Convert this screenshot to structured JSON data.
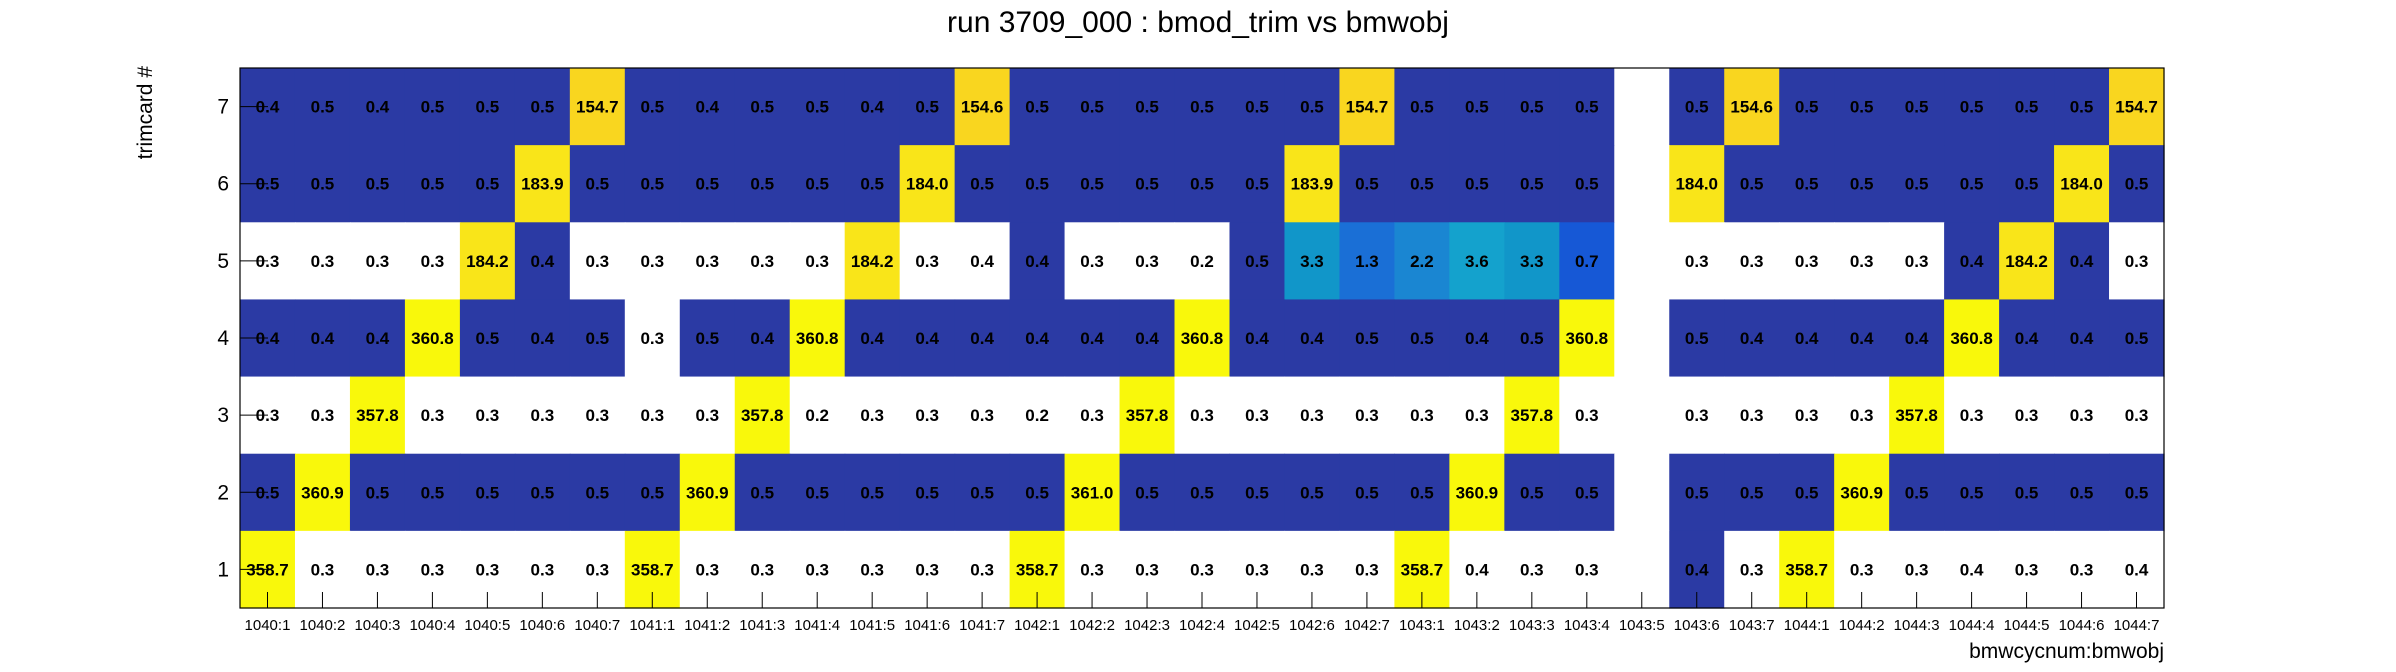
{
  "chart_data": {
    "type": "heatmap",
    "title": "run 3709_000 : bmod_trim vs bmwobj",
    "xlabel": "bmwcycnum:bmwobj",
    "ylabel": "trimcard #",
    "x_categories": [
      "1040:1",
      "1040:2",
      "1040:3",
      "1040:4",
      "1040:5",
      "1040:6",
      "1040:7",
      "1041:1",
      "1041:2",
      "1041:3",
      "1041:4",
      "1041:5",
      "1041:6",
      "1041:7",
      "1042:1",
      "1042:2",
      "1042:3",
      "1042:4",
      "1042:5",
      "1042:6",
      "1042:7",
      "1043:1",
      "1043:2",
      "1043:3",
      "1043:4",
      "1043:5",
      "1043:6",
      "1043:7",
      "1044:1",
      "1044:2",
      "1044:3",
      "1044:4",
      "1044:5",
      "1044:6",
      "1044:7"
    ],
    "y_categories": [
      "1",
      "2",
      "3",
      "4",
      "5",
      "6",
      "7"
    ],
    "rows": [
      {
        "y": "7",
        "values": [
          "0.4",
          "0.5",
          "0.4",
          "0.5",
          "0.5",
          "0.5",
          "154.7",
          "0.5",
          "0.4",
          "0.5",
          "0.5",
          "0.4",
          "0.5",
          "154.6",
          "0.5",
          "0.5",
          "0.5",
          "0.5",
          "0.5",
          "0.5",
          "154.7",
          "0.5",
          "0.5",
          "0.5",
          "0.5",
          "",
          "0.5",
          "154.6",
          "0.5",
          "0.5",
          "0.5",
          "0.5",
          "0.5",
          "0.5",
          "154.7"
        ]
      },
      {
        "y": "6",
        "values": [
          "0.5",
          "0.5",
          "0.5",
          "0.5",
          "0.5",
          "183.9",
          "0.5",
          "0.5",
          "0.5",
          "0.5",
          "0.5",
          "0.5",
          "184.0",
          "0.5",
          "0.5",
          "0.5",
          "0.5",
          "0.5",
          "0.5",
          "183.9",
          "0.5",
          "0.5",
          "0.5",
          "0.5",
          "0.5",
          "",
          "184.0",
          "0.5",
          "0.5",
          "0.5",
          "0.5",
          "0.5",
          "0.5",
          "184.0",
          "0.5"
        ]
      },
      {
        "y": "5",
        "values": [
          "0.3",
          "0.3",
          "0.3",
          "0.3",
          "184.2",
          "0.4",
          "0.3",
          "0.3",
          "0.3",
          "0.3",
          "0.3",
          "184.2",
          "0.3",
          "0.4",
          "0.4",
          "0.3",
          "0.3",
          "0.2",
          "0.5",
          "3.3",
          "1.3",
          "2.2",
          "3.6",
          "3.3",
          "0.7",
          "",
          "0.3",
          "0.3",
          "0.3",
          "0.3",
          "0.3",
          "0.4",
          "184.2",
          "0.4",
          "0.3"
        ]
      },
      {
        "y": "4",
        "values": [
          "0.4",
          "0.4",
          "0.4",
          "360.8",
          "0.5",
          "0.4",
          "0.5",
          "0.3",
          "0.5",
          "0.4",
          "360.8",
          "0.4",
          "0.4",
          "0.4",
          "0.4",
          "0.4",
          "0.4",
          "360.8",
          "0.4",
          "0.4",
          "0.5",
          "0.5",
          "0.4",
          "0.5",
          "360.8",
          "",
          "0.5",
          "0.4",
          "0.4",
          "0.4",
          "0.4",
          "360.8",
          "0.4",
          "0.4",
          "0.5"
        ]
      },
      {
        "y": "3",
        "values": [
          "0.3",
          "0.3",
          "357.8",
          "0.3",
          "0.3",
          "0.3",
          "0.3",
          "0.3",
          "0.3",
          "357.8",
          "0.2",
          "0.3",
          "0.3",
          "0.3",
          "0.2",
          "0.3",
          "357.8",
          "0.3",
          "0.3",
          "0.3",
          "0.3",
          "0.3",
          "0.3",
          "357.8",
          "0.3",
          "",
          "0.3",
          "0.3",
          "0.3",
          "0.3",
          "357.8",
          "0.3",
          "0.3",
          "0.3",
          "0.3"
        ]
      },
      {
        "y": "2",
        "values": [
          "0.5",
          "360.9",
          "0.5",
          "0.5",
          "0.5",
          "0.5",
          "0.5",
          "0.5",
          "360.9",
          "0.5",
          "0.5",
          "0.5",
          "0.5",
          "0.5",
          "0.5",
          "361.0",
          "0.5",
          "0.5",
          "0.5",
          "0.5",
          "0.5",
          "0.5",
          "360.9",
          "0.5",
          "0.5",
          "",
          "0.5",
          "0.5",
          "0.5",
          "360.9",
          "0.5",
          "0.5",
          "0.5",
          "0.5",
          "0.5"
        ]
      },
      {
        "y": "1",
        "values": [
          "358.7",
          "0.3",
          "0.3",
          "0.3",
          "0.3",
          "0.3",
          "0.3",
          "358.7",
          "0.3",
          "0.3",
          "0.3",
          "0.3",
          "0.3",
          "0.3",
          "358.7",
          "0.3",
          "0.3",
          "0.3",
          "0.3",
          "0.3",
          "0.3",
          "358.7",
          "0.4",
          "0.3",
          "0.3",
          "",
          "0.4",
          "0.3",
          "358.7",
          "0.3",
          "0.3",
          "0.4",
          "0.3",
          "0.3",
          "0.4"
        ]
      }
    ],
    "cell_colors": [
      [
        "#2b3aa4",
        "#2b3aa4",
        "#2b3aa4",
        "#2b3aa4",
        "#2b3aa4",
        "#2b3aa4",
        "#f9d61f",
        "#2b3aa4",
        "#2b3aa4",
        "#2b3aa4",
        "#2b3aa4",
        "#2b3aa4",
        "#2b3aa4",
        "#f9d61f",
        "#2b3aa4",
        "#2b3aa4",
        "#2b3aa4",
        "#2b3aa4",
        "#2b3aa4",
        "#2b3aa4",
        "#f9d61f",
        "#2b3aa4",
        "#2b3aa4",
        "#2b3aa4",
        "#2b3aa4",
        "#ffffff",
        "#2b3aa4",
        "#f9d61f",
        "#2b3aa4",
        "#2b3aa4",
        "#2b3aa4",
        "#2b3aa4",
        "#2b3aa4",
        "#2b3aa4",
        "#f9d61f"
      ],
      [
        "#2b3aa4",
        "#2b3aa4",
        "#2b3aa4",
        "#2b3aa4",
        "#2b3aa4",
        "#f9e519",
        "#2b3aa4",
        "#2b3aa4",
        "#2b3aa4",
        "#2b3aa4",
        "#2b3aa4",
        "#2b3aa4",
        "#f9e519",
        "#2b3aa4",
        "#2b3aa4",
        "#2b3aa4",
        "#2b3aa4",
        "#2b3aa4",
        "#2b3aa4",
        "#f9e519",
        "#2b3aa4",
        "#2b3aa4",
        "#2b3aa4",
        "#2b3aa4",
        "#2b3aa4",
        "#ffffff",
        "#f9e519",
        "#2b3aa4",
        "#2b3aa4",
        "#2b3aa4",
        "#2b3aa4",
        "#2b3aa4",
        "#2b3aa4",
        "#f9e519",
        "#2b3aa4"
      ],
      [
        "#ffffff",
        "#ffffff",
        "#ffffff",
        "#ffffff",
        "#f9e519",
        "#2b3aa4",
        "#ffffff",
        "#ffffff",
        "#ffffff",
        "#ffffff",
        "#ffffff",
        "#f9e519",
        "#ffffff",
        "#ffffff",
        "#2b3aa4",
        "#ffffff",
        "#ffffff",
        "#ffffff",
        "#2b3aa4",
        "#1196c9",
        "#1a6fd6",
        "#1a86d2",
        "#14a2cd",
        "#1196c9",
        "#1658d6",
        "#ffffff",
        "#ffffff",
        "#ffffff",
        "#ffffff",
        "#ffffff",
        "#ffffff",
        "#2b3aa4",
        "#f9e519",
        "#2b3aa4",
        "#ffffff"
      ],
      [
        "#2b3aa4",
        "#2b3aa4",
        "#2b3aa4",
        "#f9f80b",
        "#2b3aa4",
        "#2b3aa4",
        "#2b3aa4",
        "#ffffff",
        "#2b3aa4",
        "#2b3aa4",
        "#f9f80b",
        "#2b3aa4",
        "#2b3aa4",
        "#2b3aa4",
        "#2b3aa4",
        "#2b3aa4",
        "#2b3aa4",
        "#f9f80b",
        "#2b3aa4",
        "#2b3aa4",
        "#2b3aa4",
        "#2b3aa4",
        "#2b3aa4",
        "#2b3aa4",
        "#f9f80b",
        "#ffffff",
        "#2b3aa4",
        "#2b3aa4",
        "#2b3aa4",
        "#2b3aa4",
        "#2b3aa4",
        "#f9f80b",
        "#2b3aa4",
        "#2b3aa4",
        "#2b3aa4"
      ],
      [
        "#ffffff",
        "#ffffff",
        "#f9f80b",
        "#ffffff",
        "#ffffff",
        "#ffffff",
        "#ffffff",
        "#ffffff",
        "#ffffff",
        "#f9f80b",
        "#ffffff",
        "#ffffff",
        "#ffffff",
        "#ffffff",
        "#ffffff",
        "#ffffff",
        "#f9f80b",
        "#ffffff",
        "#ffffff",
        "#ffffff",
        "#ffffff",
        "#ffffff",
        "#ffffff",
        "#f9f80b",
        "#ffffff",
        "#ffffff",
        "#ffffff",
        "#ffffff",
        "#ffffff",
        "#ffffff",
        "#f9f80b",
        "#ffffff",
        "#ffffff",
        "#ffffff",
        "#ffffff"
      ],
      [
        "#2b3aa4",
        "#f9f80b",
        "#2b3aa4",
        "#2b3aa4",
        "#2b3aa4",
        "#2b3aa4",
        "#2b3aa4",
        "#2b3aa4",
        "#f9f80b",
        "#2b3aa4",
        "#2b3aa4",
        "#2b3aa4",
        "#2b3aa4",
        "#2b3aa4",
        "#2b3aa4",
        "#f9f80b",
        "#2b3aa4",
        "#2b3aa4",
        "#2b3aa4",
        "#2b3aa4",
        "#2b3aa4",
        "#2b3aa4",
        "#f9f80b",
        "#2b3aa4",
        "#2b3aa4",
        "#ffffff",
        "#2b3aa4",
        "#2b3aa4",
        "#2b3aa4",
        "#f9f80b",
        "#2b3aa4",
        "#2b3aa4",
        "#2b3aa4",
        "#2b3aa4",
        "#2b3aa4"
      ],
      [
        "#f9f80b",
        "#ffffff",
        "#ffffff",
        "#ffffff",
        "#ffffff",
        "#ffffff",
        "#ffffff",
        "#f9f80b",
        "#ffffff",
        "#ffffff",
        "#ffffff",
        "#ffffff",
        "#ffffff",
        "#ffffff",
        "#f9f80b",
        "#ffffff",
        "#ffffff",
        "#ffffff",
        "#ffffff",
        "#ffffff",
        "#ffffff",
        "#f9f80b",
        "#ffffff",
        "#ffffff",
        "#ffffff",
        "#ffffff",
        "#2b3aa4",
        "#ffffff",
        "#f9f80b",
        "#ffffff",
        "#ffffff",
        "#ffffff",
        "#ffffff",
        "#ffffff",
        "#ffffff"
      ]
    ]
  }
}
